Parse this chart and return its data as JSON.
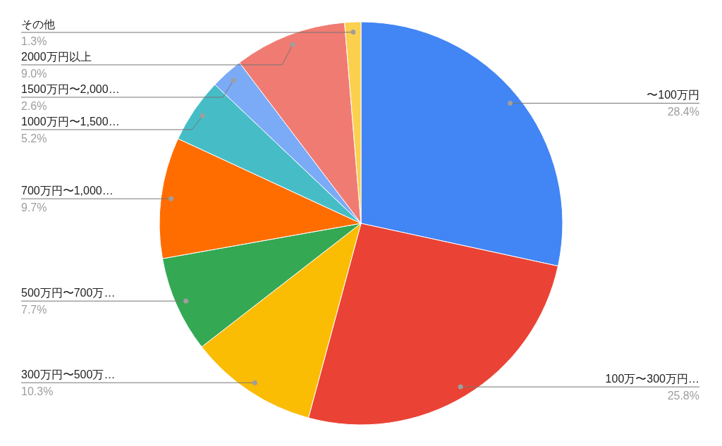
{
  "chart_data": {
    "type": "pie",
    "categories": [
      "〜100万円",
      "100万〜300万円…",
      "300万円〜500万…",
      "500万円〜700万…",
      "700万円〜1,000…",
      "1000万円〜1,500…",
      "1500万円〜2,000…",
      "2000万円以上",
      "その他"
    ],
    "values": [
      28.4,
      25.8,
      10.3,
      7.7,
      9.7,
      5.2,
      2.6,
      9.0,
      1.3
    ],
    "colors": [
      "#4285f4",
      "#ea4335",
      "#fbbc04",
      "#34a853",
      "#ff6d01",
      "#46bdc6",
      "#7baaf7",
      "#f07b72",
      "#fcd04f"
    ],
    "value_labels": [
      "28.4%",
      "25.8%",
      "10.3%",
      "7.7%",
      "9.7%",
      "5.2%",
      "2.6%",
      "9.0%",
      "1.3%"
    ]
  }
}
